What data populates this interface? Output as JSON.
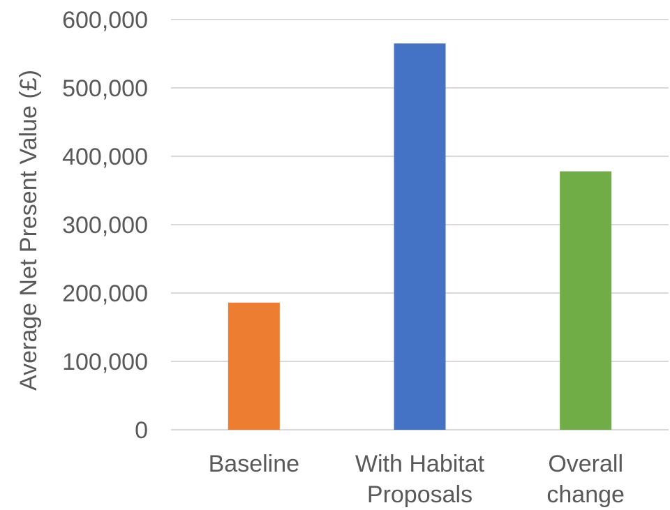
{
  "chart_data": {
    "type": "bar",
    "title": "",
    "xlabel": "",
    "ylabel": "Average Net Present Value (£)",
    "categories": [
      [
        "Baseline"
      ],
      [
        "With Habitat",
        "Proposals"
      ],
      [
        "Overall",
        "change"
      ]
    ],
    "values": [
      186000,
      565000,
      378000
    ],
    "bar_colors": [
      "#ED7D31",
      "#4472C4",
      "#70AD47"
    ],
    "ylim": [
      0,
      600000
    ],
    "yticks": [
      0,
      100000,
      200000,
      300000,
      400000,
      500000,
      600000
    ],
    "ytick_labels": [
      "0",
      "100,000",
      "200,000",
      "300,000",
      "400,000",
      "500,000",
      "600,000"
    ],
    "grid": true,
    "legend": "none"
  }
}
